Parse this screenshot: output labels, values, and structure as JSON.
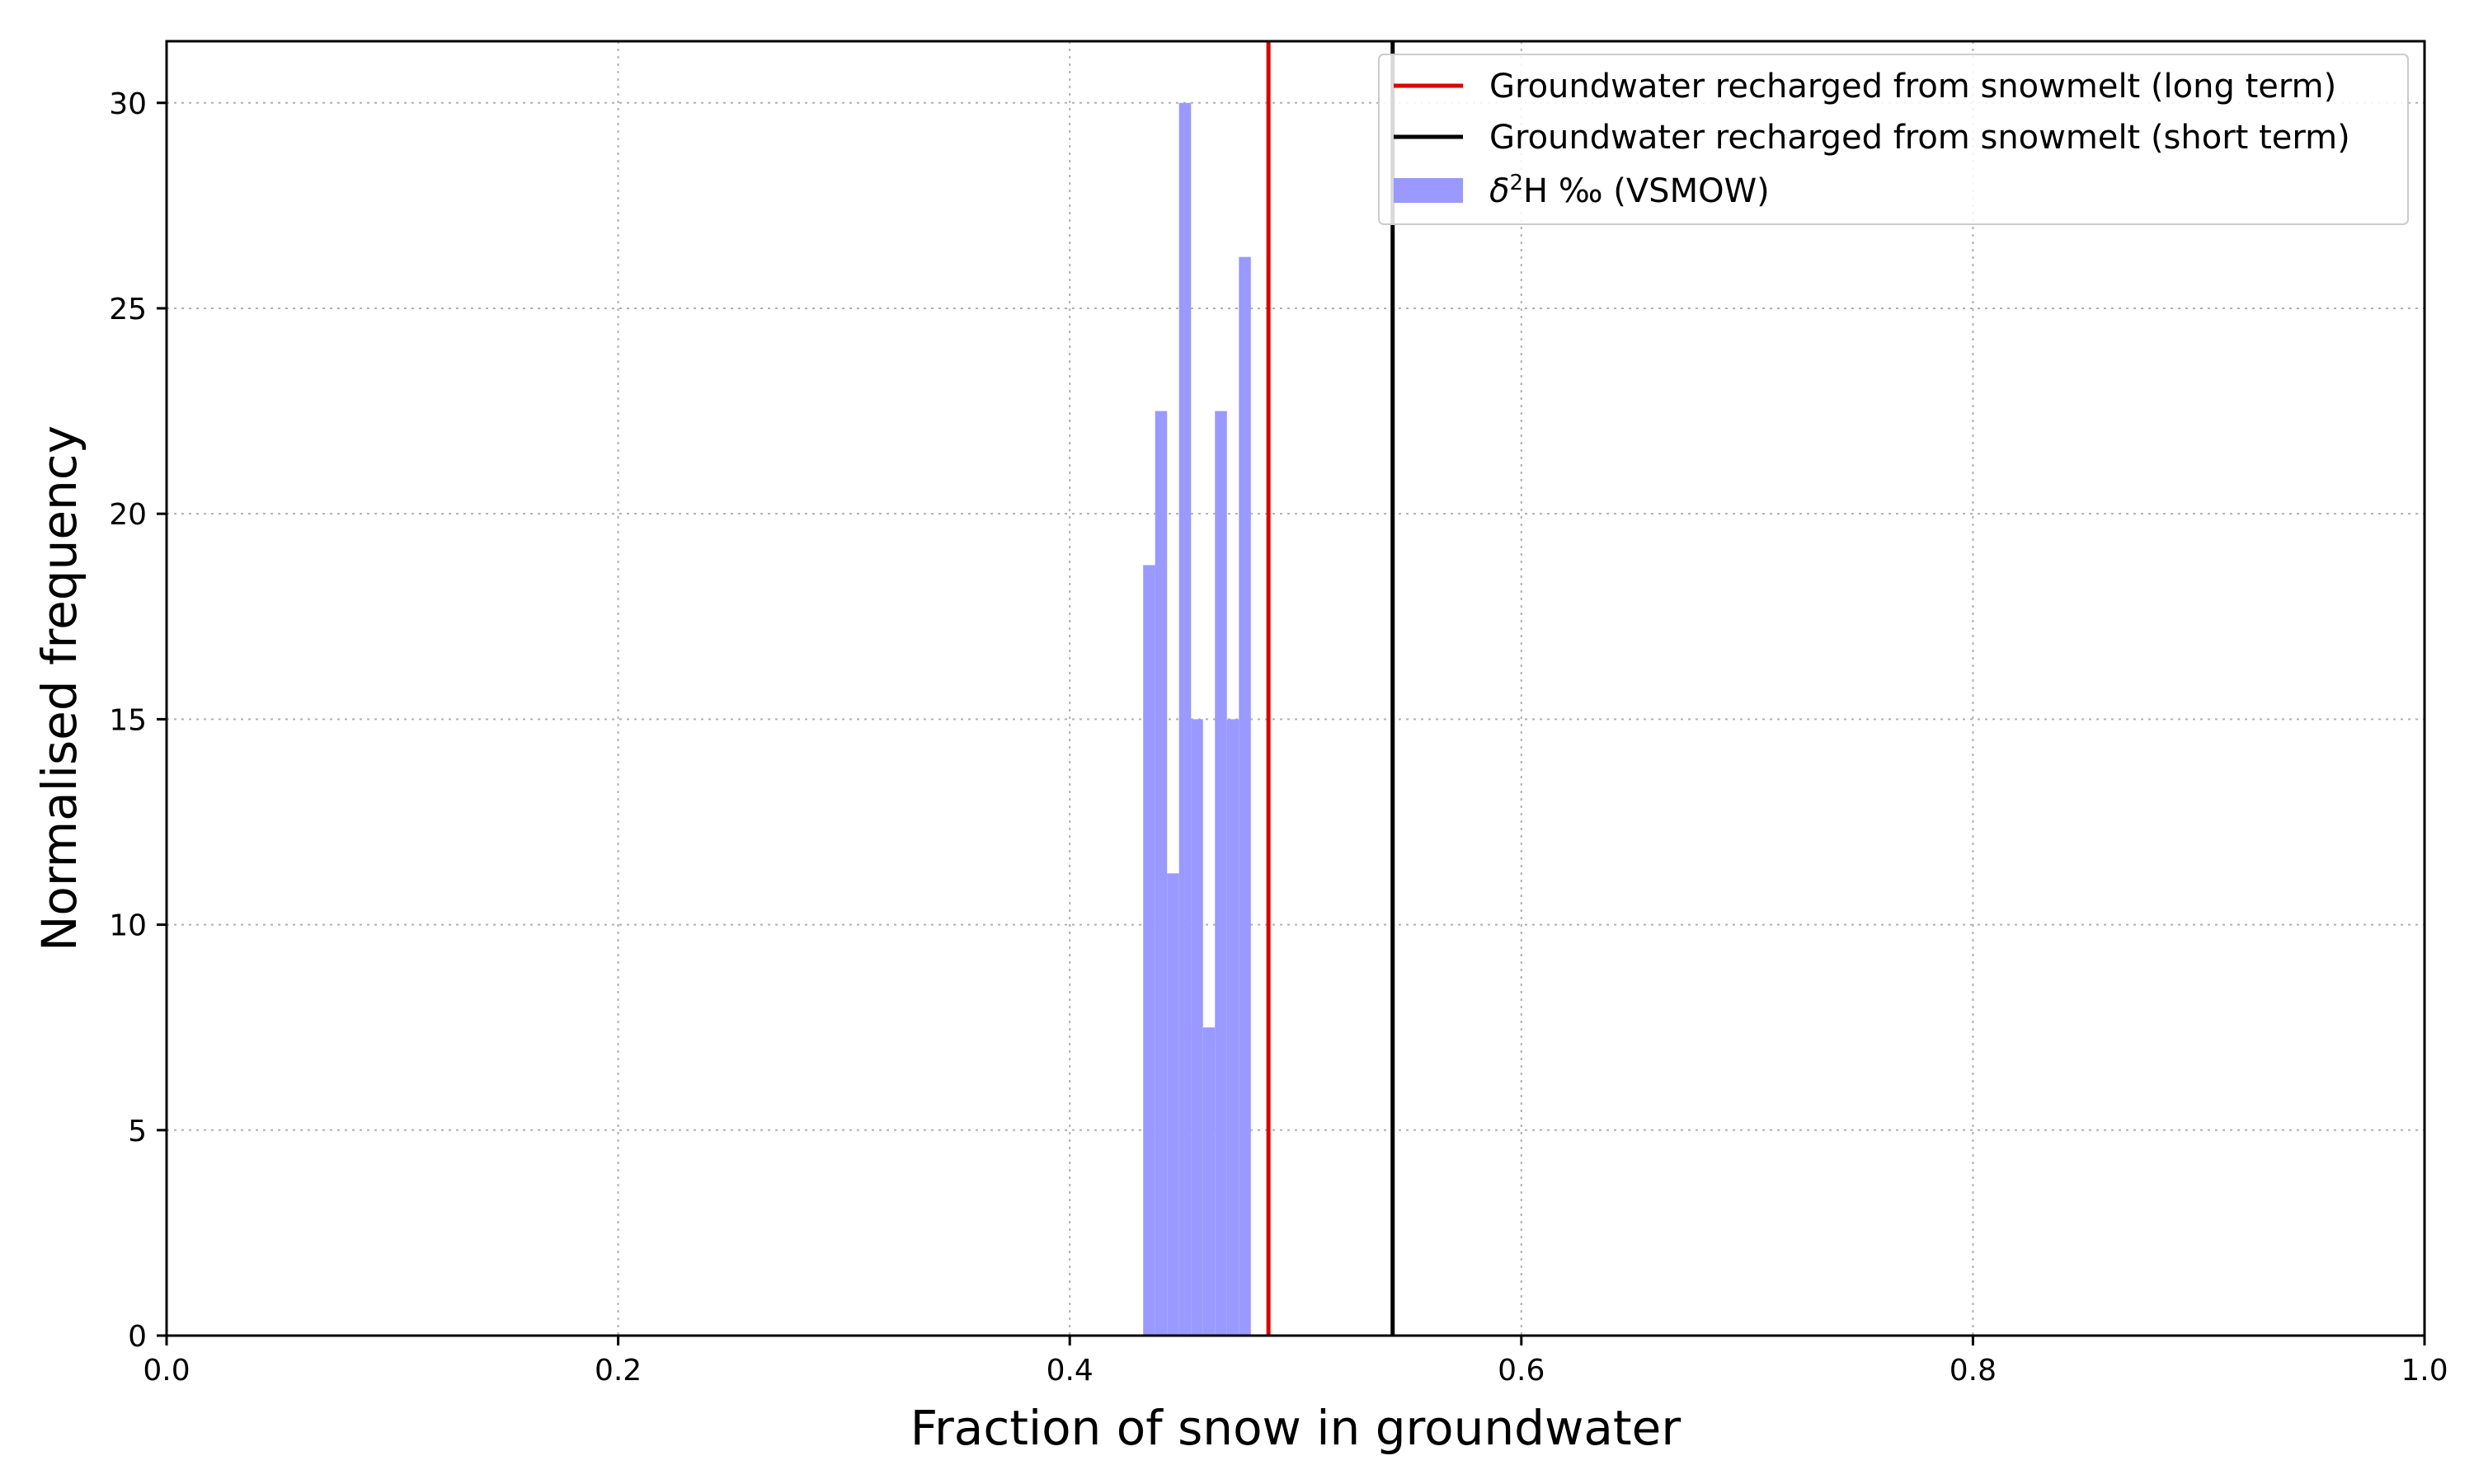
{
  "chart_data": {
    "type": "bar",
    "title": "",
    "xlabel": "Fraction of snow in groundwater",
    "ylabel": "Normalised frequency",
    "xlim": [
      0.0,
      1.0
    ],
    "ylim": [
      0,
      31.5
    ],
    "xticks": [
      0.0,
      0.2,
      0.4,
      0.6,
      0.8,
      1.0
    ],
    "xtick_labels": [
      "0.0",
      "0.2",
      "0.4",
      "0.6",
      "0.8",
      "1.0"
    ],
    "yticks": [
      0,
      5,
      10,
      15,
      20,
      25,
      30
    ],
    "ytick_labels": [
      "0",
      "5",
      "10",
      "15",
      "20",
      "25",
      "30"
    ],
    "grid": true,
    "legend_position": "top-right",
    "histogram": {
      "name": "δ²H ‰ (VSMOW)",
      "color": "#9999ff",
      "bin_edges": [
        0.4325,
        0.4378,
        0.4431,
        0.4484,
        0.4537,
        0.459,
        0.4643,
        0.4696,
        0.4749,
        0.4802,
        0.4855
      ],
      "values": [
        18.75,
        22.5,
        11.25,
        30.0,
        15.0,
        7.5,
        22.5,
        15.0,
        26.25,
        0
      ]
    },
    "vlines": [
      {
        "name": "Groundwater recharged from snowmelt (long term)",
        "x": 0.488,
        "color": "#dd0000"
      },
      {
        "name": "Groundwater recharged from snowmelt (short term)",
        "x": 0.543,
        "color": "#000000"
      }
    ],
    "legend": {
      "entries": [
        {
          "label": "Groundwater recharged from snowmelt (long term)",
          "kind": "line",
          "color": "#dd0000"
        },
        {
          "label": "Groundwater recharged from snowmelt (short term)",
          "kind": "line",
          "color": "#000000"
        },
        {
          "label_prefix": "δ",
          "label_sup": "2",
          "label_suffix": "H ‰ (VSMOW)",
          "kind": "patch",
          "color": "#9999ff"
        }
      ]
    }
  }
}
